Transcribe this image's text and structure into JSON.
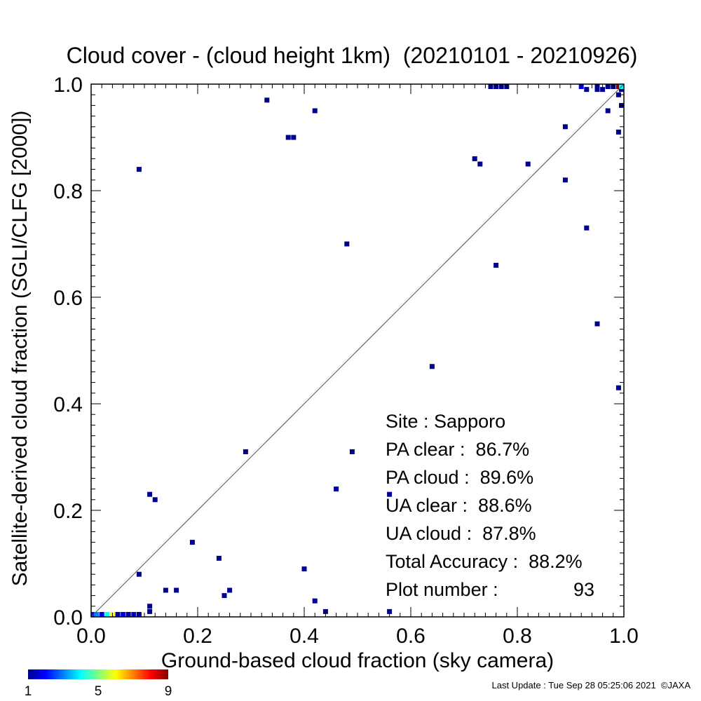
{
  "chart_data": {
    "type": "heatmap",
    "title": "Cloud cover - (cloud height 1km)  (20210101 - 20210926)",
    "xlabel": "Ground-based cloud fraction (sky camera)",
    "ylabel": "Satellite-derived cloud fraction (SGLI/CLFG [2000])",
    "xlim": [
      0,
      1
    ],
    "ylim": [
      0,
      1
    ],
    "x_ticks": [
      "0.0",
      "0.2",
      "0.4",
      "0.6",
      "0.8",
      "1.0"
    ],
    "y_ticks": [
      "0.0",
      "0.2",
      "0.4",
      "0.6",
      "0.8",
      "1.0"
    ],
    "reference_line": "1:1 diagonal",
    "grid": false,
    "colorbar": {
      "min": 1,
      "max": 9,
      "tick_labels": [
        "1",
        "5",
        "9"
      ]
    },
    "cells": [
      {
        "x": 0.09,
        "y": 0.84,
        "count": 1
      },
      {
        "x": 0.33,
        "y": 0.97,
        "count": 1
      },
      {
        "x": 0.37,
        "y": 0.9,
        "count": 1
      },
      {
        "x": 0.38,
        "y": 0.9,
        "count": 1
      },
      {
        "x": 0.42,
        "y": 0.95,
        "count": 1
      },
      {
        "x": 0.48,
        "y": 0.7,
        "count": 1
      },
      {
        "x": 0.72,
        "y": 0.86,
        "count": 1
      },
      {
        "x": 0.73,
        "y": 0.85,
        "count": 1
      },
      {
        "x": 0.76,
        "y": 0.66,
        "count": 1
      },
      {
        "x": 0.82,
        "y": 0.85,
        "count": 1
      },
      {
        "x": 0.89,
        "y": 0.92,
        "count": 1
      },
      {
        "x": 0.89,
        "y": 0.82,
        "count": 1
      },
      {
        "x": 0.93,
        "y": 0.73,
        "count": 1
      },
      {
        "x": 0.95,
        "y": 0.55,
        "count": 1
      },
      {
        "x": 0.99,
        "y": 0.43,
        "count": 1
      },
      {
        "x": 0.64,
        "y": 0.47,
        "count": 1
      },
      {
        "x": 0.49,
        "y": 0.31,
        "count": 1
      },
      {
        "x": 0.29,
        "y": 0.31,
        "count": 1
      },
      {
        "x": 0.46,
        "y": 0.24,
        "count": 1
      },
      {
        "x": 0.56,
        "y": 0.23,
        "count": 1
      },
      {
        "x": 0.11,
        "y": 0.23,
        "count": 1
      },
      {
        "x": 0.12,
        "y": 0.22,
        "count": 1
      },
      {
        "x": 0.19,
        "y": 0.14,
        "count": 1
      },
      {
        "x": 0.24,
        "y": 0.11,
        "count": 1
      },
      {
        "x": 0.09,
        "y": 0.08,
        "count": 1
      },
      {
        "x": 0.4,
        "y": 0.09,
        "count": 1
      },
      {
        "x": 0.14,
        "y": 0.05,
        "count": 1
      },
      {
        "x": 0.16,
        "y": 0.05,
        "count": 1
      },
      {
        "x": 0.26,
        "y": 0.05,
        "count": 1
      },
      {
        "x": 0.25,
        "y": 0.04,
        "count": 1
      },
      {
        "x": 0.42,
        "y": 0.03,
        "count": 1
      },
      {
        "x": 0.11,
        "y": 0.02,
        "count": 1
      },
      {
        "x": 0.11,
        "y": 0.01,
        "count": 1
      },
      {
        "x": 0.44,
        "y": 0.01,
        "count": 1
      },
      {
        "x": 0.56,
        "y": 0.01,
        "count": 1
      },
      {
        "x": 0.97,
        "y": 0.95,
        "count": 1
      },
      {
        "x": 0.99,
        "y": 0.91,
        "count": 1
      },
      {
        "x": 0.99,
        "y": 0.98,
        "count": 1
      },
      {
        "x": 1.0,
        "y": 0.96,
        "count": 1
      },
      {
        "x": 0.93,
        "y": 0.99,
        "count": 1
      },
      {
        "x": 0.95,
        "y": 0.99,
        "count": 1
      },
      {
        "x": 0.96,
        "y": 0.99,
        "count": 1
      },
      {
        "x": 1.0,
        "y": 0.99,
        "count": 1
      },
      {
        "x": 0.75,
        "y": 1.0,
        "count": 1
      },
      {
        "x": 0.76,
        "y": 1.0,
        "count": 1
      },
      {
        "x": 0.77,
        "y": 1.0,
        "count": 1
      },
      {
        "x": 0.78,
        "y": 1.0,
        "count": 1
      },
      {
        "x": 0.92,
        "y": 1.0,
        "count": 2
      },
      {
        "x": 0.95,
        "y": 1.0,
        "count": 1
      },
      {
        "x": 0.97,
        "y": 1.0,
        "count": 1
      },
      {
        "x": 0.98,
        "y": 1.0,
        "count": 1
      },
      {
        "x": 0.99,
        "y": 1.0,
        "count": 9
      },
      {
        "x": 1.0,
        "y": 1.0,
        "count": 4
      },
      {
        "x": 0.0,
        "y": 0.0,
        "count": 2
      },
      {
        "x": 0.01,
        "y": 0.0,
        "count": 3
      },
      {
        "x": 0.02,
        "y": 0.0,
        "count": 2
      },
      {
        "x": 0.03,
        "y": 0.0,
        "count": 4
      },
      {
        "x": 0.04,
        "y": 0.0,
        "count": 6
      },
      {
        "x": 0.05,
        "y": 0.0,
        "count": 1
      },
      {
        "x": 0.06,
        "y": 0.0,
        "count": 2
      },
      {
        "x": 0.07,
        "y": 0.0,
        "count": 1
      },
      {
        "x": 0.08,
        "y": 0.0,
        "count": 2
      },
      {
        "x": 0.09,
        "y": 0.0,
        "count": 1
      }
    ]
  },
  "stats": {
    "site": "Site : Sapporo",
    "pa_clear": "PA clear :  86.7%",
    "pa_cloud": "PA cloud :  89.6%",
    "ua_clear": "UA clear :  88.6%",
    "ua_cloud": "UA cloud :  87.8%",
    "total_accuracy": "Total Accuracy :  88.2%",
    "plot_number_label": "Plot number :",
    "plot_number_value": "93"
  },
  "footer": {
    "last_update": "Last Update : Tue Sep 28 05:25:06 2021  ©JAXA"
  }
}
